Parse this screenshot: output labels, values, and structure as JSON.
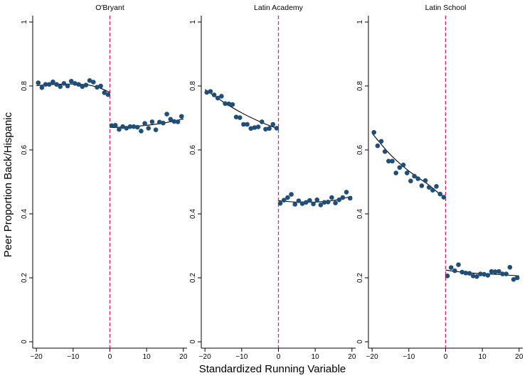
{
  "chart_data": {
    "type": "scatter",
    "ylabel": "Peer Proportion Back/Hispanic",
    "xlabel": "Standardized Running Variable",
    "xlim": [
      -21,
      21
    ],
    "ylim": [
      -0.02,
      1.02
    ],
    "xticks": [
      -20,
      -10,
      0,
      10,
      20
    ],
    "yticks": [
      0,
      0.2,
      0.4,
      0.6,
      0.8,
      1
    ],
    "xtick_labels": [
      "−20",
      "−10",
      "0",
      "10",
      "20"
    ],
    "ytick_labels": [
      "0",
      "0.2",
      "0.4",
      "0.6",
      "0.8",
      "1"
    ],
    "cutoff": 0,
    "point_color": "#1f4e79",
    "cutoff_color": "#e0245e",
    "panels": [
      {
        "title": "O'Bryant",
        "points": [
          [
            -19.5,
            0.81
          ],
          [
            -18.5,
            0.795
          ],
          [
            -17.5,
            0.805
          ],
          [
            -16.5,
            0.805
          ],
          [
            -15.5,
            0.813
          ],
          [
            -14.5,
            0.805
          ],
          [
            -13.5,
            0.798
          ],
          [
            -12.5,
            0.808
          ],
          [
            -11.5,
            0.8
          ],
          [
            -10.5,
            0.815
          ],
          [
            -9.5,
            0.808
          ],
          [
            -8.5,
            0.805
          ],
          [
            -7.5,
            0.798
          ],
          [
            -6.5,
            0.803
          ],
          [
            -5.5,
            0.817
          ],
          [
            -4.5,
            0.812
          ],
          [
            -3.5,
            0.796
          ],
          [
            -2.5,
            0.8
          ],
          [
            -1.5,
            0.779
          ],
          [
            -0.5,
            0.773
          ],
          [
            0.5,
            0.676
          ],
          [
            1.5,
            0.677
          ],
          [
            2.5,
            0.664
          ],
          [
            3.5,
            0.673
          ],
          [
            4.5,
            0.668
          ],
          [
            5.5,
            0.673
          ],
          [
            6.5,
            0.673
          ],
          [
            7.5,
            0.671
          ],
          [
            8.5,
            0.659
          ],
          [
            9.5,
            0.683
          ],
          [
            10.5,
            0.668
          ],
          [
            11.5,
            0.688
          ],
          [
            12.5,
            0.663
          ],
          [
            13.5,
            0.687
          ],
          [
            14.5,
            0.684
          ],
          [
            15.5,
            0.712
          ],
          [
            16.5,
            0.696
          ],
          [
            17.5,
            0.689
          ],
          [
            18.5,
            0.688
          ],
          [
            19.5,
            0.705
          ]
        ],
        "fit_left": [
          [
            -20,
            0.801
          ],
          [
            -15,
            0.805
          ],
          [
            -10,
            0.806
          ],
          [
            -6,
            0.803
          ],
          [
            -3,
            0.795
          ],
          [
            0,
            0.78
          ]
        ],
        "fit_right": [
          [
            0,
            0.67
          ],
          [
            5,
            0.672
          ],
          [
            10,
            0.677
          ],
          [
            15,
            0.685
          ],
          [
            20,
            0.697
          ]
        ]
      },
      {
        "title": "Latin Academy",
        "points": [
          [
            -19.5,
            0.78
          ],
          [
            -18.5,
            0.783
          ],
          [
            -17.5,
            0.772
          ],
          [
            -16.5,
            0.762
          ],
          [
            -15.5,
            0.768
          ],
          [
            -14.5,
            0.745
          ],
          [
            -13.5,
            0.744
          ],
          [
            -12.5,
            0.742
          ],
          [
            -11.5,
            0.703
          ],
          [
            -10.5,
            0.701
          ],
          [
            -9.5,
            0.68
          ],
          [
            -8.5,
            0.68
          ],
          [
            -7.5,
            0.667
          ],
          [
            -6.5,
            0.67
          ],
          [
            -5.5,
            0.672
          ],
          [
            -4.5,
            0.688
          ],
          [
            -3.5,
            0.665
          ],
          [
            -2.5,
            0.667
          ],
          [
            -1.5,
            0.68
          ],
          [
            -0.5,
            0.668
          ],
          [
            0.5,
            0.433
          ],
          [
            1.5,
            0.443
          ],
          [
            2.5,
            0.451
          ],
          [
            3.5,
            0.461
          ],
          [
            4.5,
            0.43
          ],
          [
            5.5,
            0.441
          ],
          [
            6.5,
            0.432
          ],
          [
            7.5,
            0.436
          ],
          [
            8.5,
            0.442
          ],
          [
            9.5,
            0.431
          ],
          [
            10.5,
            0.444
          ],
          [
            11.5,
            0.428
          ],
          [
            12.5,
            0.436
          ],
          [
            13.5,
            0.437
          ],
          [
            14.5,
            0.451
          ],
          [
            15.5,
            0.434
          ],
          [
            16.5,
            0.444
          ],
          [
            17.5,
            0.451
          ],
          [
            18.5,
            0.468
          ],
          [
            19.5,
            0.449
          ]
        ],
        "fit_left": [
          [
            -20,
            0.789
          ],
          [
            -15,
            0.75
          ],
          [
            -10,
            0.716
          ],
          [
            -5,
            0.688
          ],
          [
            -2,
            0.674
          ],
          [
            0,
            0.667
          ]
        ],
        "fit_right": [
          [
            0,
            0.441
          ],
          [
            5,
            0.437
          ],
          [
            10,
            0.437
          ],
          [
            15,
            0.442
          ],
          [
            20,
            0.455
          ]
        ]
      },
      {
        "title": "Latin School",
        "points": [
          [
            -19.5,
            0.655
          ],
          [
            -18.5,
            0.613
          ],
          [
            -17.5,
            0.627
          ],
          [
            -16.5,
            0.595
          ],
          [
            -15.5,
            0.565
          ],
          [
            -14.5,
            0.565
          ],
          [
            -13.5,
            0.528
          ],
          [
            -12.5,
            0.545
          ],
          [
            -11.5,
            0.553
          ],
          [
            -10.5,
            0.528
          ],
          [
            -9.5,
            0.503
          ],
          [
            -8.5,
            0.518
          ],
          [
            -7.5,
            0.51
          ],
          [
            -6.5,
            0.488
          ],
          [
            -5.5,
            0.504
          ],
          [
            -4.5,
            0.483
          ],
          [
            -3.5,
            0.474
          ],
          [
            -2.5,
            0.486
          ],
          [
            -1.5,
            0.462
          ],
          [
            -0.5,
            0.452
          ],
          [
            0.5,
            0.206
          ],
          [
            1.5,
            0.232
          ],
          [
            2.5,
            0.222
          ],
          [
            3.5,
            0.241
          ],
          [
            4.5,
            0.218
          ],
          [
            5.5,
            0.215
          ],
          [
            6.5,
            0.214
          ],
          [
            7.5,
            0.206
          ],
          [
            8.5,
            0.204
          ],
          [
            9.5,
            0.212
          ],
          [
            10.5,
            0.211
          ],
          [
            11.5,
            0.208
          ],
          [
            12.5,
            0.22
          ],
          [
            13.5,
            0.219
          ],
          [
            14.5,
            0.22
          ],
          [
            15.5,
            0.212
          ],
          [
            16.5,
            0.212
          ],
          [
            17.5,
            0.233
          ],
          [
            18.5,
            0.195
          ],
          [
            19.5,
            0.2
          ]
        ],
        "fit_left": [
          [
            -20,
            0.652
          ],
          [
            -15,
            0.585
          ],
          [
            -10,
            0.534
          ],
          [
            -5,
            0.494
          ],
          [
            -2,
            0.466
          ],
          [
            0,
            0.45
          ]
        ],
        "fit_right": [
          [
            0,
            0.224
          ],
          [
            5,
            0.217
          ],
          [
            10,
            0.213
          ],
          [
            15,
            0.21
          ],
          [
            20,
            0.206
          ]
        ]
      }
    ]
  }
}
